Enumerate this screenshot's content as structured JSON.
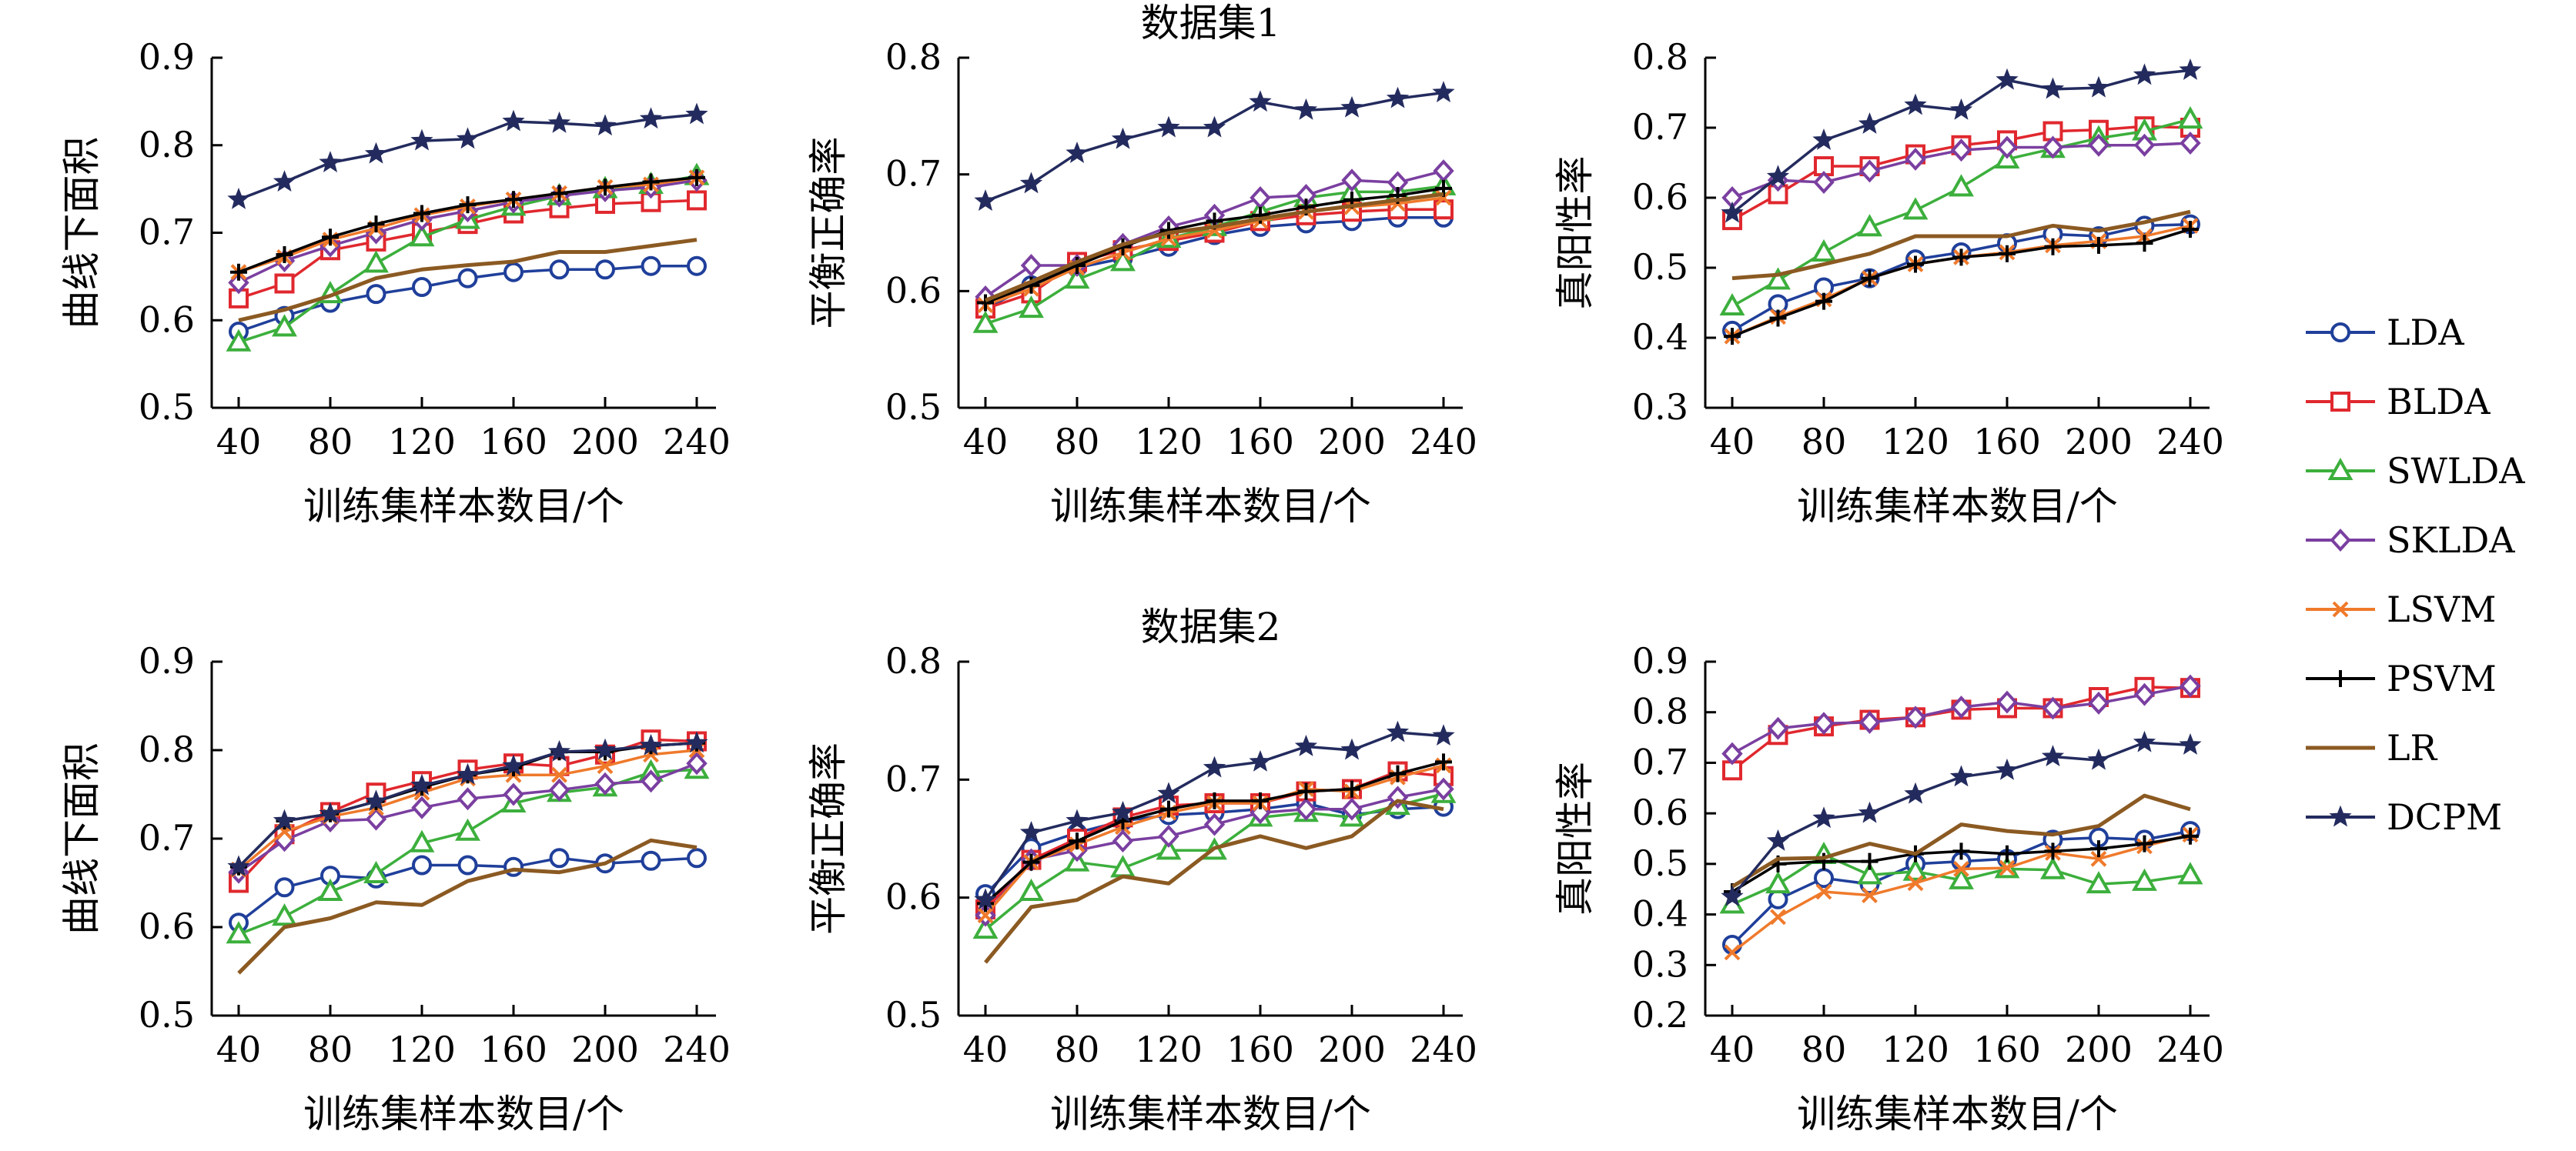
{
  "colors": {
    "LDA": "#1f3f9a",
    "BLDA": "#e0282e",
    "SWLDA": "#3caf3c",
    "SKLDA": "#7a3fa0",
    "LSVM": "#ef7a2b",
    "PSVM": "#000000",
    "LR": "#8b5a22",
    "DCPM": "#232b5e"
  },
  "legend": {
    "items": [
      {
        "name": "LDA",
        "marker": "circle"
      },
      {
        "name": "BLDA",
        "marker": "square"
      },
      {
        "name": "SWLDA",
        "marker": "triangle"
      },
      {
        "name": "SKLDA",
        "marker": "diamond"
      },
      {
        "name": "LSVM",
        "marker": "x"
      },
      {
        "name": "PSVM",
        "marker": "plus"
      },
      {
        "name": "LR",
        "marker": "none"
      },
      {
        "name": "DCPM",
        "marker": "star"
      }
    ]
  },
  "chart_data": [
    {
      "type": "line",
      "title": "",
      "xlabel": "训练集样本数目/个",
      "ylabel": "曲线下面积",
      "ylim": [
        0.5,
        0.9
      ],
      "yticks": [
        "0.5",
        "0.6",
        "0.7",
        "0.8",
        "0.9"
      ],
      "xticks": [
        "40",
        "80",
        "120",
        "160",
        "200",
        "240"
      ],
      "x": [
        40,
        60,
        80,
        100,
        120,
        140,
        160,
        180,
        200,
        220,
        240
      ],
      "series": [
        {
          "name": "LDA",
          "values": [
            0.587,
            0.605,
            0.62,
            0.63,
            0.638,
            0.648,
            0.655,
            0.658,
            0.658,
            0.662,
            0.662
          ]
        },
        {
          "name": "BLDA",
          "values": [
            0.625,
            0.642,
            0.68,
            0.69,
            0.7,
            0.71,
            0.722,
            0.728,
            0.733,
            0.735,
            0.737
          ]
        },
        {
          "name": "SWLDA",
          "values": [
            0.575,
            0.592,
            0.63,
            0.665,
            0.695,
            0.715,
            0.73,
            0.742,
            0.75,
            0.755,
            0.765
          ]
        },
        {
          "name": "SKLDA",
          "values": [
            0.643,
            0.668,
            0.685,
            0.7,
            0.715,
            0.725,
            0.735,
            0.742,
            0.748,
            0.752,
            0.76
          ]
        },
        {
          "name": "LSVM",
          "values": [
            0.655,
            0.672,
            0.692,
            0.705,
            0.72,
            0.73,
            0.738,
            0.745,
            0.752,
            0.755,
            0.763
          ]
        },
        {
          "name": "PSVM",
          "values": [
            0.655,
            0.675,
            0.695,
            0.71,
            0.722,
            0.732,
            0.738,
            0.745,
            0.752,
            0.758,
            0.763
          ]
        },
        {
          "name": "LR",
          "values": [
            0.6,
            0.612,
            0.628,
            0.648,
            0.658,
            0.663,
            0.667,
            0.678,
            0.678,
            0.685,
            0.692
          ]
        },
        {
          "name": "DCPM",
          "values": [
            0.738,
            0.758,
            0.78,
            0.79,
            0.805,
            0.807,
            0.827,
            0.825,
            0.822,
            0.83,
            0.835
          ]
        }
      ]
    },
    {
      "type": "line",
      "title": "数据集1",
      "xlabel": "训练集样本数目/个",
      "ylabel": "平衡正确率",
      "ylim": [
        0.5,
        0.8
      ],
      "yticks": [
        "0.5",
        "0.6",
        "0.7",
        "0.8"
      ],
      "xticks": [
        "40",
        "80",
        "120",
        "160",
        "200",
        "240"
      ],
      "x": [
        40,
        60,
        80,
        100,
        120,
        140,
        160,
        180,
        200,
        220,
        240
      ],
      "series": [
        {
          "name": "LDA",
          "values": [
            0.585,
            0.605,
            0.62,
            0.628,
            0.638,
            0.648,
            0.655,
            0.658,
            0.66,
            0.663,
            0.663
          ]
        },
        {
          "name": "BLDA",
          "values": [
            0.585,
            0.598,
            0.625,
            0.635,
            0.643,
            0.65,
            0.66,
            0.665,
            0.668,
            0.67,
            0.67
          ]
        },
        {
          "name": "SWLDA",
          "values": [
            0.572,
            0.585,
            0.61,
            0.625,
            0.645,
            0.655,
            0.668,
            0.68,
            0.685,
            0.685,
            0.69
          ]
        },
        {
          "name": "SKLDA",
          "values": [
            0.595,
            0.622,
            0.622,
            0.64,
            0.655,
            0.665,
            0.68,
            0.682,
            0.695,
            0.693,
            0.703
          ]
        },
        {
          "name": "LSVM",
          "values": [
            0.588,
            0.602,
            0.62,
            0.633,
            0.645,
            0.652,
            0.66,
            0.668,
            0.672,
            0.675,
            0.68
          ]
        },
        {
          "name": "PSVM",
          "values": [
            0.59,
            0.605,
            0.622,
            0.638,
            0.652,
            0.66,
            0.665,
            0.672,
            0.678,
            0.682,
            0.688
          ]
        },
        {
          "name": "LR",
          "values": [
            0.592,
            0.608,
            0.625,
            0.64,
            0.65,
            0.655,
            0.662,
            0.668,
            0.673,
            0.678,
            0.683
          ]
        },
        {
          "name": "DCPM",
          "values": [
            0.677,
            0.692,
            0.718,
            0.73,
            0.74,
            0.74,
            0.762,
            0.755,
            0.757,
            0.765,
            0.77
          ]
        }
      ]
    },
    {
      "type": "line",
      "title": "",
      "xlabel": "训练集样本数目/个",
      "ylabel": "真阳性率",
      "ylim": [
        0.3,
        0.8
      ],
      "yticks": [
        "0.3",
        "0.4",
        "0.5",
        "0.6",
        "0.7",
        "0.8"
      ],
      "xticks": [
        "40",
        "80",
        "120",
        "160",
        "200",
        "240"
      ],
      "x": [
        40,
        60,
        80,
        100,
        120,
        140,
        160,
        180,
        200,
        220,
        240
      ],
      "series": [
        {
          "name": "LDA",
          "values": [
            0.41,
            0.448,
            0.472,
            0.485,
            0.512,
            0.522,
            0.535,
            0.548,
            0.545,
            0.56,
            0.562
          ]
        },
        {
          "name": "BLDA",
          "values": [
            0.568,
            0.605,
            0.645,
            0.645,
            0.662,
            0.675,
            0.682,
            0.695,
            0.697,
            0.702,
            0.7
          ]
        },
        {
          "name": "SWLDA",
          "values": [
            0.445,
            0.482,
            0.522,
            0.558,
            0.582,
            0.615,
            0.655,
            0.67,
            0.685,
            0.695,
            0.712
          ]
        },
        {
          "name": "SKLDA",
          "values": [
            0.6,
            0.625,
            0.622,
            0.638,
            0.655,
            0.668,
            0.672,
            0.672,
            0.675,
            0.675,
            0.678
          ]
        },
        {
          "name": "LSVM",
          "values": [
            0.402,
            0.43,
            0.455,
            0.485,
            0.505,
            0.515,
            0.522,
            0.532,
            0.538,
            0.545,
            0.56
          ]
        },
        {
          "name": "PSVM",
          "values": [
            0.402,
            0.428,
            0.452,
            0.485,
            0.505,
            0.515,
            0.52,
            0.53,
            0.532,
            0.535,
            0.555
          ]
        },
        {
          "name": "LR",
          "values": [
            0.485,
            0.49,
            0.505,
            0.52,
            0.545,
            0.545,
            0.545,
            0.56,
            0.553,
            0.565,
            0.58
          ]
        },
        {
          "name": "DCPM",
          "values": [
            0.578,
            0.63,
            0.682,
            0.705,
            0.732,
            0.725,
            0.768,
            0.755,
            0.757,
            0.775,
            0.782
          ]
        }
      ]
    },
    {
      "type": "line",
      "title": "",
      "xlabel": "训练集样本数目/个",
      "ylabel": "曲线下面积",
      "ylim": [
        0.5,
        0.9
      ],
      "yticks": [
        "0.5",
        "0.6",
        "0.7",
        "0.8",
        "0.9"
      ],
      "xticks": [
        "40",
        "80",
        "120",
        "160",
        "200",
        "240"
      ],
      "x": [
        40,
        60,
        80,
        100,
        120,
        140,
        160,
        180,
        200,
        220,
        240
      ],
      "series": [
        {
          "name": "LDA",
          "values": [
            0.605,
            0.645,
            0.658,
            0.655,
            0.67,
            0.67,
            0.668,
            0.678,
            0.672,
            0.675,
            0.678
          ]
        },
        {
          "name": "BLDA",
          "values": [
            0.65,
            0.705,
            0.73,
            0.752,
            0.765,
            0.778,
            0.785,
            0.782,
            0.795,
            0.812,
            0.81
          ]
        },
        {
          "name": "SWLDA",
          "values": [
            0.592,
            0.612,
            0.64,
            0.66,
            0.695,
            0.708,
            0.74,
            0.752,
            0.758,
            0.775,
            0.778
          ]
        },
        {
          "name": "SKLDA",
          "values": [
            0.662,
            0.698,
            0.72,
            0.722,
            0.735,
            0.745,
            0.75,
            0.755,
            0.762,
            0.765,
            0.785
          ]
        },
        {
          "name": "LSVM",
          "values": [
            0.665,
            0.708,
            0.725,
            0.735,
            0.752,
            0.768,
            0.772,
            0.772,
            0.782,
            0.795,
            0.8
          ]
        },
        {
          "name": "PSVM",
          "values": [
            0.668,
            0.72,
            0.728,
            0.742,
            0.758,
            0.772,
            0.78,
            0.798,
            0.798,
            0.805,
            0.808
          ]
        },
        {
          "name": "LR",
          "values": [
            0.548,
            0.6,
            0.61,
            0.628,
            0.625,
            0.652,
            0.665,
            0.662,
            0.672,
            0.698,
            0.69
          ]
        },
        {
          "name": "DCPM",
          "values": [
            0.668,
            0.72,
            0.728,
            0.742,
            0.76,
            0.772,
            0.782,
            0.798,
            0.8,
            0.805,
            0.808
          ]
        }
      ]
    },
    {
      "type": "line",
      "title": "数据集2",
      "xlabel": "训练集样本数目/个",
      "ylabel": "平衡正确率",
      "ylim": [
        0.5,
        0.8
      ],
      "yticks": [
        "0.5",
        "0.6",
        "0.7",
        "0.8"
      ],
      "xticks": [
        "40",
        "80",
        "120",
        "160",
        "200",
        "240"
      ],
      "x": [
        40,
        60,
        80,
        100,
        120,
        140,
        160,
        180,
        200,
        220,
        240
      ],
      "series": [
        {
          "name": "LDA",
          "values": [
            0.603,
            0.642,
            0.655,
            0.665,
            0.67,
            0.672,
            0.675,
            0.68,
            0.67,
            0.675,
            0.677
          ]
        },
        {
          "name": "BLDA",
          "values": [
            0.59,
            0.632,
            0.65,
            0.668,
            0.678,
            0.68,
            0.68,
            0.69,
            0.692,
            0.707,
            0.703
          ]
        },
        {
          "name": "SWLDA",
          "values": [
            0.573,
            0.605,
            0.63,
            0.625,
            0.64,
            0.64,
            0.668,
            0.672,
            0.668,
            0.678,
            0.688
          ]
        },
        {
          "name": "SKLDA",
          "values": [
            0.585,
            0.632,
            0.64,
            0.648,
            0.652,
            0.662,
            0.672,
            0.675,
            0.675,
            0.685,
            0.692
          ]
        },
        {
          "name": "LSVM",
          "values": [
            0.585,
            0.63,
            0.645,
            0.66,
            0.672,
            0.68,
            0.68,
            0.692,
            0.69,
            0.702,
            0.712
          ]
        },
        {
          "name": "PSVM",
          "values": [
            0.595,
            0.63,
            0.648,
            0.665,
            0.675,
            0.682,
            0.682,
            0.69,
            0.692,
            0.705,
            0.715
          ]
        },
        {
          "name": "LR",
          "values": [
            0.545,
            0.592,
            0.598,
            0.618,
            0.612,
            0.642,
            0.652,
            0.642,
            0.652,
            0.682,
            0.675
          ]
        },
        {
          "name": "DCPM",
          "values": [
            0.598,
            0.655,
            0.665,
            0.672,
            0.688,
            0.71,
            0.715,
            0.728,
            0.725,
            0.74,
            0.737
          ]
        }
      ]
    },
    {
      "type": "line",
      "title": "",
      "xlabel": "训练集样本数目/个",
      "ylabel": "真阳性率",
      "ylim": [
        0.2,
        0.9
      ],
      "yticks": [
        "0.2",
        "0.3",
        "0.4",
        "0.5",
        "0.6",
        "0.7",
        "0.8",
        "0.9"
      ],
      "xticks": [
        "40",
        "80",
        "120",
        "160",
        "200",
        "240"
      ],
      "x": [
        40,
        60,
        80,
        100,
        120,
        140,
        160,
        180,
        200,
        220,
        240
      ],
      "series": [
        {
          "name": "LDA",
          "values": [
            0.34,
            0.43,
            0.472,
            0.46,
            0.5,
            0.505,
            0.51,
            0.548,
            0.552,
            0.548,
            0.565
          ]
        },
        {
          "name": "BLDA",
          "values": [
            0.685,
            0.755,
            0.772,
            0.785,
            0.79,
            0.805,
            0.808,
            0.808,
            0.83,
            0.85,
            0.848
          ]
        },
        {
          "name": "SWLDA",
          "values": [
            0.42,
            0.46,
            0.518,
            0.478,
            0.485,
            0.468,
            0.49,
            0.488,
            0.46,
            0.465,
            0.478
          ]
        },
        {
          "name": "SKLDA",
          "values": [
            0.718,
            0.768,
            0.778,
            0.78,
            0.79,
            0.81,
            0.82,
            0.808,
            0.818,
            0.835,
            0.852
          ]
        },
        {
          "name": "LSVM",
          "values": [
            0.325,
            0.395,
            0.445,
            0.438,
            0.462,
            0.49,
            0.492,
            0.522,
            0.51,
            0.535,
            0.558
          ]
        },
        {
          "name": "PSVM",
          "values": [
            0.445,
            0.5,
            0.505,
            0.505,
            0.52,
            0.525,
            0.52,
            0.525,
            0.53,
            0.54,
            0.555
          ]
        },
        {
          "name": "LR",
          "values": [
            0.455,
            0.51,
            0.512,
            0.54,
            0.52,
            0.578,
            0.565,
            0.558,
            0.575,
            0.635,
            0.608
          ]
        },
        {
          "name": "DCPM",
          "values": [
            0.435,
            0.545,
            0.59,
            0.6,
            0.638,
            0.672,
            0.685,
            0.712,
            0.705,
            0.74,
            0.735
          ]
        }
      ]
    }
  ]
}
